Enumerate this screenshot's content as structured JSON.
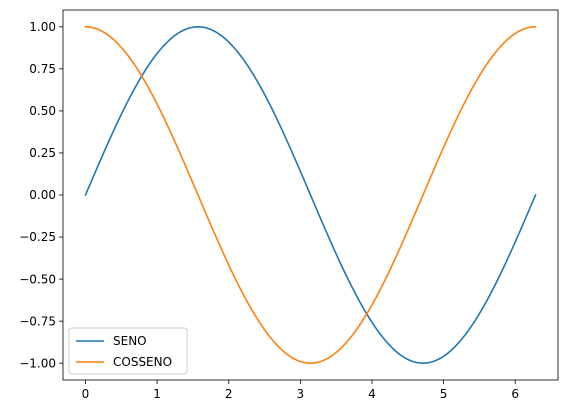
{
  "chart_data": {
    "type": "line",
    "title": "",
    "xlabel": "",
    "ylabel": "",
    "xlim": [
      -0.314159,
      6.597345
    ],
    "ylim": [
      -1.1,
      1.1
    ],
    "x_range": [
      0,
      6.283185
    ],
    "x_ticks": [
      0,
      1,
      2,
      3,
      4,
      5,
      6
    ],
    "x_tick_labels": [
      "0",
      "1",
      "2",
      "3",
      "4",
      "5",
      "6"
    ],
    "y_ticks": [
      1.0,
      0.75,
      0.5,
      0.25,
      0.0,
      -0.25,
      -0.5,
      -0.75,
      -1.0
    ],
    "y_tick_labels": [
      "1.00",
      "0.75",
      "0.50",
      "0.25",
      "0.00",
      "−0.25",
      "−0.50",
      "−0.75",
      "−1.00"
    ],
    "grid": false,
    "legend_position": "lower-left",
    "series": [
      {
        "name": "SENO",
        "function": "sin",
        "color": "#1f77b4"
      },
      {
        "name": "COSSENO",
        "function": "cos",
        "color": "#ff7f0e"
      }
    ]
  }
}
